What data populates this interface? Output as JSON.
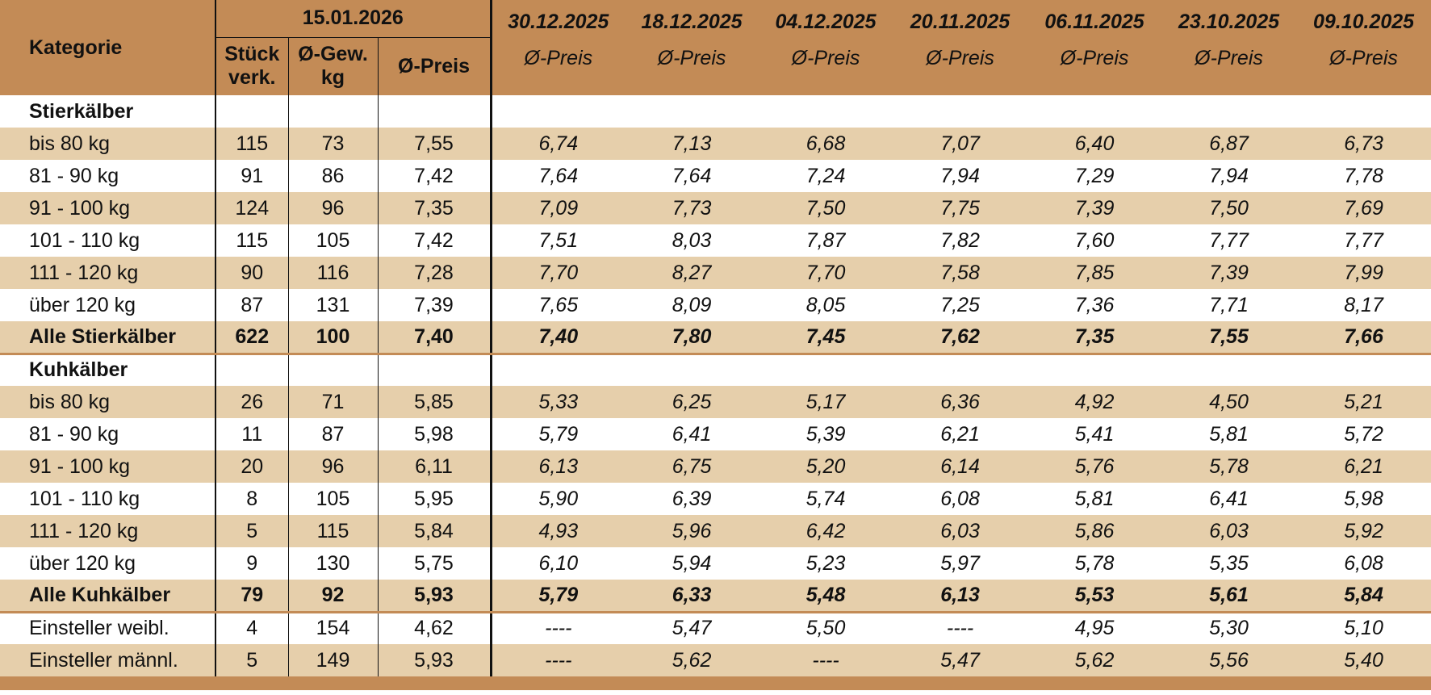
{
  "header": {
    "category": "Kategorie",
    "current": {
      "date": "15.01.2026",
      "columns": [
        "Stück\nverk.",
        "Ø-Gew.\nkg",
        "Ø-Preis"
      ]
    },
    "past": [
      {
        "date": "30.12.2025",
        "column": "Ø-Preis"
      },
      {
        "date": "18.12.2025",
        "column": "Ø-Preis"
      },
      {
        "date": "04.12.2025",
        "column": "Ø-Preis"
      },
      {
        "date": "20.11.2025",
        "column": "Ø-Preis"
      },
      {
        "date": "06.11.2025",
        "column": "Ø-Preis"
      },
      {
        "date": "23.10.2025",
        "column": "Ø-Preis"
      },
      {
        "date": "09.10.2025",
        "column": "Ø-Preis"
      }
    ]
  },
  "sections": [
    {
      "title": "Stierkälber",
      "rows": [
        [
          "bis 80 kg",
          115,
          73,
          "7,55",
          "6,74",
          "7,13",
          "6,68",
          "7,07",
          "6,40",
          "6,87",
          "6,73"
        ],
        [
          "81 - 90 kg",
          91,
          86,
          "7,42",
          "7,64",
          "7,64",
          "7,24",
          "7,94",
          "7,29",
          "7,94",
          "7,78"
        ],
        [
          "91 - 100 kg",
          124,
          96,
          "7,35",
          "7,09",
          "7,73",
          "7,50",
          "7,75",
          "7,39",
          "7,50",
          "7,69"
        ],
        [
          "101 - 110 kg",
          115,
          105,
          "7,42",
          "7,51",
          "8,03",
          "7,87",
          "7,82",
          "7,60",
          "7,77",
          "7,77"
        ],
        [
          "111 - 120 kg",
          90,
          116,
          "7,28",
          "7,70",
          "8,27",
          "7,70",
          "7,58",
          "7,85",
          "7,39",
          "7,99"
        ],
        [
          "über 120 kg",
          87,
          131,
          "7,39",
          "7,65",
          "8,09",
          "8,05",
          "7,25",
          "7,36",
          "7,71",
          "8,17"
        ]
      ],
      "total": [
        "Alle Stierkälber",
        622,
        100,
        "7,40",
        "7,40",
        "7,80",
        "7,45",
        "7,62",
        "7,35",
        "7,55",
        "7,66"
      ]
    },
    {
      "title": "Kuhkälber",
      "rows": [
        [
          "bis 80 kg",
          26,
          71,
          "5,85",
          "5,33",
          "6,25",
          "5,17",
          "6,36",
          "4,92",
          "4,50",
          "5,21"
        ],
        [
          "81 - 90 kg",
          11,
          87,
          "5,98",
          "5,79",
          "6,41",
          "5,39",
          "6,21",
          "5,41",
          "5,81",
          "5,72"
        ],
        [
          "91 - 100 kg",
          20,
          96,
          "6,11",
          "6,13",
          "6,75",
          "5,20",
          "6,14",
          "5,76",
          "5,78",
          "6,21"
        ],
        [
          "101 - 110 kg",
          8,
          105,
          "5,95",
          "5,90",
          "6,39",
          "5,74",
          "6,08",
          "5,81",
          "6,41",
          "5,98"
        ],
        [
          "111 - 120 kg",
          5,
          115,
          "5,84",
          "4,93",
          "5,96",
          "6,42",
          "6,03",
          "5,86",
          "6,03",
          "5,92"
        ],
        [
          "über 120 kg",
          9,
          130,
          "5,75",
          "6,10",
          "5,94",
          "5,23",
          "5,97",
          "5,78",
          "5,35",
          "6,08"
        ]
      ],
      "total": [
        "Alle Kuhkälber",
        79,
        92,
        "5,93",
        "5,79",
        "6,33",
        "5,48",
        "6,13",
        "5,53",
        "5,61",
        "5,84"
      ]
    }
  ],
  "extra_rows": [
    [
      "Einsteller weibl.",
      4,
      154,
      "4,62",
      "----",
      "5,47",
      "5,50",
      "----",
      "4,95",
      "5,30",
      "5,10"
    ],
    [
      "Einsteller männl.",
      5,
      149,
      "5,93",
      "----",
      "5,62",
      "----",
      "5,47",
      "5,62",
      "5,56",
      "5,40"
    ]
  ]
}
